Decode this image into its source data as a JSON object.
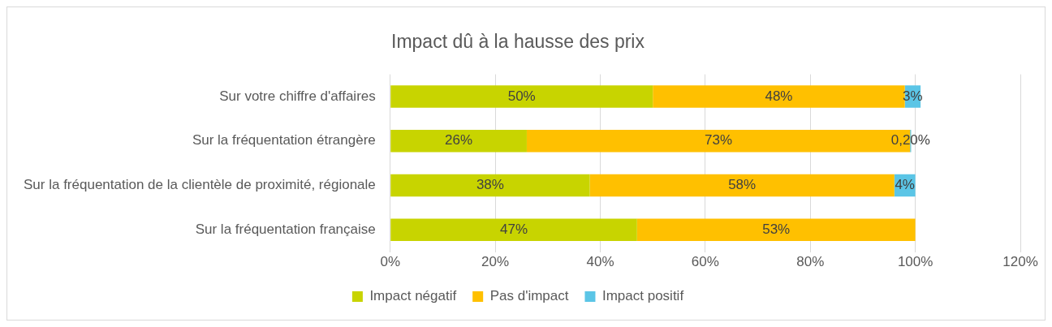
{
  "chart_data": {
    "type": "bar",
    "title": "Impact dû à la hausse des prix",
    "orientation": "horizontal",
    "stacked": true,
    "categories": [
      "Sur votre chiffre d'affaires",
      "Sur la fréquentation étrangère",
      "Sur la fréquentation de la clientèle de proximité, régionale",
      "Sur la fréquentation française"
    ],
    "series": [
      {
        "name": "Impact négatif",
        "color": "#c8d400",
        "values": [
          50,
          26,
          38,
          47
        ],
        "value_labels": [
          "50%",
          "26%",
          "38%",
          "47%"
        ]
      },
      {
        "name": "Pas d'impact",
        "color": "#ffc000",
        "values": [
          48,
          73,
          58,
          53
        ],
        "value_labels": [
          "48%",
          "73%",
          "58%",
          "53%"
        ]
      },
      {
        "name": "Impact positif",
        "color": "#5bc5e6",
        "values": [
          3,
          0.2,
          4,
          null
        ],
        "value_labels": [
          "3%",
          "0,20%",
          "4%",
          null
        ]
      }
    ],
    "xlim": [
      0,
      120
    ],
    "xticks": [
      {
        "value": 0,
        "label": "0%"
      },
      {
        "value": 20,
        "label": "20%"
      },
      {
        "value": 40,
        "label": "40%"
      },
      {
        "value": 60,
        "label": "60%"
      },
      {
        "value": 80,
        "label": "80%"
      },
      {
        "value": 100,
        "label": "100%"
      },
      {
        "value": 120,
        "label": "120%"
      }
    ],
    "grid": "x",
    "legend": "bottom"
  }
}
